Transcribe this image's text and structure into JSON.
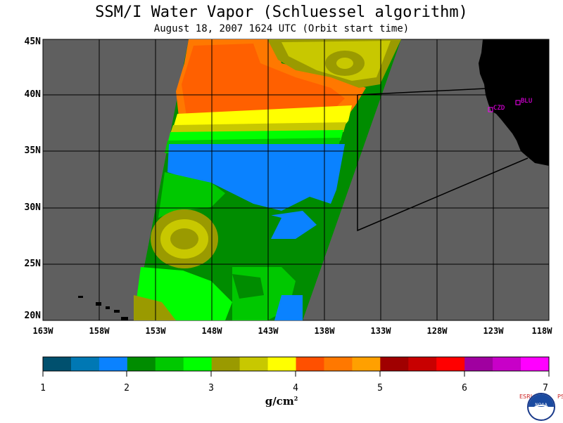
{
  "title": "SSM/I Water Vapor (Schluessel algorithm)",
  "subtitle": "August 18, 2007  1624 UTC  (Orbit start time)",
  "map": {
    "lat_range": [
      20,
      45
    ],
    "lon_range": [
      -163,
      -118
    ],
    "lat_ticks": [
      "45N",
      "40N",
      "35N",
      "30N",
      "25N",
      "20N"
    ],
    "lon_ticks": [
      "163W",
      "158W",
      "153W",
      "148W",
      "143W",
      "138W",
      "133W",
      "128W",
      "123W",
      "118W"
    ],
    "background_color": "#5f5f5f",
    "land_color": "#000000",
    "stations": [
      {
        "label": "CZD",
        "lat": 38.6,
        "lon": -123.2
      },
      {
        "label": "BLU",
        "lat": 39.3,
        "lon": -120.9
      }
    ]
  },
  "colorbar": {
    "unit_base": "g/cm",
    "unit_exp": "2",
    "tick_labels": [
      "1",
      "2",
      "3",
      "4",
      "5",
      "6",
      "7"
    ],
    "colors": [
      "#00506e",
      "#0078b4",
      "#0a82ff",
      "#008c00",
      "#00c800",
      "#00ff00",
      "#9a9a00",
      "#c8c800",
      "#ffff00",
      "#ff5000",
      "#ff7800",
      "#ffa000",
      "#a00000",
      "#c80000",
      "#ff0000",
      "#a000a0",
      "#c800c8",
      "#ff00ff"
    ]
  },
  "logo": {
    "left_text": "ESRL",
    "right_text": "PSD",
    "center_text": "NOAA"
  }
}
